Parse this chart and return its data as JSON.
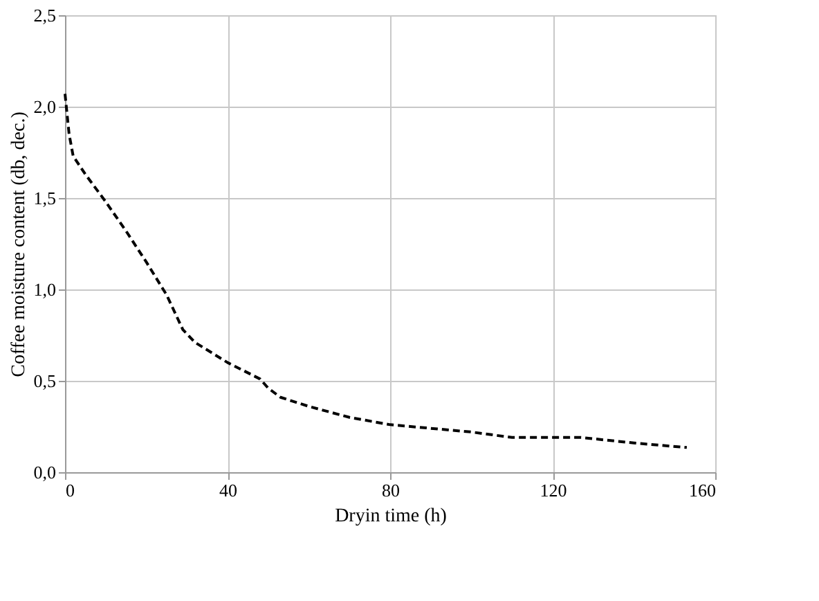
{
  "chart_data": {
    "type": "line",
    "xlabel": "Dryin time (h)",
    "ylabel": "Coffee moisture content (db, dec.)",
    "series": [
      {
        "color": "#000000",
        "line_style": "dashed",
        "x": [
          0,
          1,
          2,
          5,
          10,
          15,
          20,
          25,
          29,
          32,
          40,
          48,
          50,
          53,
          60,
          70,
          80,
          90,
          100,
          110,
          120,
          127,
          140,
          153
        ],
        "values": [
          2.07,
          1.85,
          1.73,
          1.63,
          1.48,
          1.32,
          1.15,
          0.97,
          0.78,
          0.71,
          0.6,
          0.51,
          0.46,
          0.41,
          0.36,
          0.3,
          0.26,
          0.24,
          0.22,
          0.19,
          0.19,
          0.19,
          0.16,
          0.135
        ]
      }
    ],
    "xlim": [
      0,
      160
    ],
    "xticks": [
      0,
      40,
      80,
      120,
      160
    ],
    "ylim": [
      0,
      2.5
    ],
    "yticks": [
      {
        "value": 0,
        "label": "0,0"
      },
      {
        "value": 0.5,
        "label": "0,5"
      },
      {
        "value": 1,
        "label": "1,0"
      },
      {
        "value": 1.5,
        "label": "1,5"
      },
      {
        "value": 2,
        "label": "2,0"
      },
      {
        "value": 2.5,
        "label": "2,5"
      }
    ],
    "grid": true,
    "marker": "none"
  }
}
